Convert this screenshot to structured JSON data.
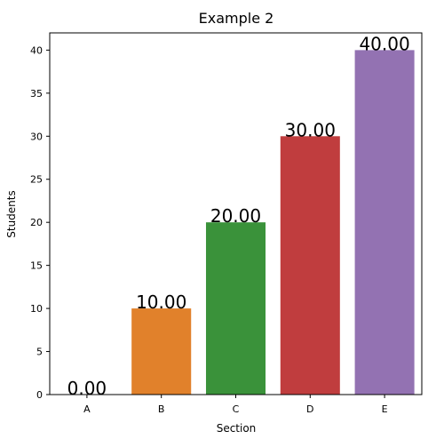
{
  "chart_data": {
    "type": "bar",
    "title": "Example 2",
    "xlabel": "Section",
    "ylabel": "Students",
    "categories": [
      "A",
      "B",
      "C",
      "D",
      "E"
    ],
    "values": [
      0,
      10,
      20,
      30,
      40
    ],
    "data_labels": [
      "0.00",
      "10.00",
      "20.00",
      "30.00",
      "40.00"
    ],
    "y_ticks": [
      0,
      5,
      10,
      15,
      20,
      25,
      30,
      35,
      40
    ],
    "ylim": [
      0,
      42
    ],
    "colors": [
      "#3a75b0",
      "#e1812b",
      "#3a923a",
      "#c03d3e",
      "#9372b2"
    ],
    "grid": false,
    "legend": "none"
  }
}
